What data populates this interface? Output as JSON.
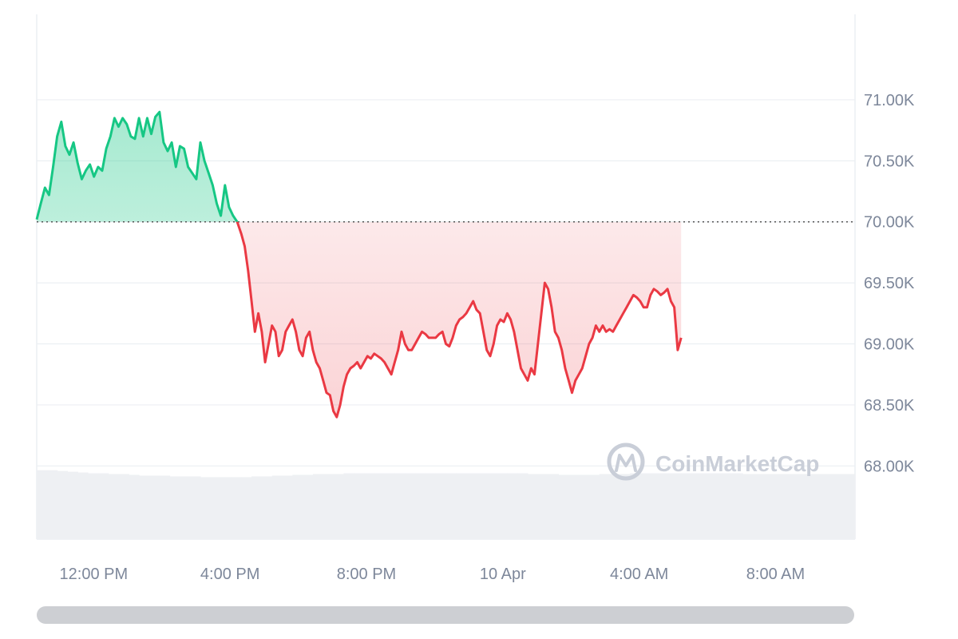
{
  "watermark": {
    "text": "CoinMarketCap",
    "icon": "coinmarketcap-logo-icon"
  },
  "colors": {
    "up": "#16c784",
    "down": "#ea3943",
    "grid": "#eceff3",
    "volume": "#eef0f3",
    "axis_text": "#7d879a",
    "scrollbar": "#cdcfd3"
  },
  "chart_data": {
    "type": "area",
    "baseline": 70000,
    "baseline_style": "dotted",
    "ylim": [
      67400,
      71700
    ],
    "y_ticks": [
      {
        "value": 71000,
        "label": "71.00K"
      },
      {
        "value": 70500,
        "label": "70.50K"
      },
      {
        "value": 70000,
        "label": "70.00K"
      },
      {
        "value": 69500,
        "label": "69.50K"
      },
      {
        "value": 69000,
        "label": "69.00K"
      },
      {
        "value": 68500,
        "label": "68.50K"
      },
      {
        "value": 68000,
        "label": "68.00K"
      }
    ],
    "x_domain_hours": [
      0,
      24
    ],
    "x_ticks": [
      {
        "hour": 1.67,
        "label": "12:00 PM"
      },
      {
        "hour": 5.67,
        "label": "4:00 PM"
      },
      {
        "hour": 9.67,
        "label": "8:00 PM"
      },
      {
        "hour": 13.67,
        "label": "10 Apr"
      },
      {
        "hour": 17.67,
        "label": "4:00 AM"
      },
      {
        "hour": 21.67,
        "label": "8:00 AM"
      }
    ],
    "series": [
      {
        "points": [
          [
            0.0,
            70020
          ],
          [
            0.12,
            70150
          ],
          [
            0.24,
            70280
          ],
          [
            0.36,
            70220
          ],
          [
            0.48,
            70450
          ],
          [
            0.6,
            70700
          ],
          [
            0.72,
            70820
          ],
          [
            0.84,
            70620
          ],
          [
            0.96,
            70550
          ],
          [
            1.08,
            70650
          ],
          [
            1.2,
            70480
          ],
          [
            1.32,
            70350
          ],
          [
            1.44,
            70420
          ],
          [
            1.56,
            70470
          ],
          [
            1.68,
            70370
          ],
          [
            1.8,
            70450
          ],
          [
            1.92,
            70420
          ],
          [
            2.04,
            70600
          ],
          [
            2.16,
            70700
          ],
          [
            2.28,
            70850
          ],
          [
            2.4,
            70780
          ],
          [
            2.52,
            70850
          ],
          [
            2.64,
            70800
          ],
          [
            2.76,
            70700
          ],
          [
            2.88,
            70680
          ],
          [
            3.0,
            70850
          ],
          [
            3.12,
            70700
          ],
          [
            3.24,
            70850
          ],
          [
            3.36,
            70720
          ],
          [
            3.48,
            70860
          ],
          [
            3.6,
            70900
          ],
          [
            3.72,
            70650
          ],
          [
            3.84,
            70580
          ],
          [
            3.96,
            70650
          ],
          [
            4.08,
            70450
          ],
          [
            4.2,
            70620
          ],
          [
            4.32,
            70600
          ],
          [
            4.44,
            70450
          ],
          [
            4.56,
            70400
          ],
          [
            4.68,
            70350
          ],
          [
            4.8,
            70650
          ],
          [
            4.92,
            70500
          ],
          [
            5.04,
            70400
          ],
          [
            5.16,
            70300
          ],
          [
            5.28,
            70150
          ],
          [
            5.4,
            70050
          ],
          [
            5.52,
            70300
          ],
          [
            5.64,
            70120
          ],
          [
            5.76,
            70050
          ],
          [
            5.88,
            70000
          ],
          [
            6.0,
            69900
          ],
          [
            6.1,
            69800
          ],
          [
            6.2,
            69600
          ],
          [
            6.3,
            69350
          ],
          [
            6.4,
            69100
          ],
          [
            6.5,
            69250
          ],
          [
            6.6,
            69100
          ],
          [
            6.7,
            68850
          ],
          [
            6.8,
            69000
          ],
          [
            6.9,
            69150
          ],
          [
            7.0,
            69100
          ],
          [
            7.1,
            68900
          ],
          [
            7.2,
            68950
          ],
          [
            7.3,
            69100
          ],
          [
            7.4,
            69150
          ],
          [
            7.5,
            69200
          ],
          [
            7.6,
            69100
          ],
          [
            7.7,
            68950
          ],
          [
            7.8,
            68900
          ],
          [
            7.9,
            69050
          ],
          [
            8.0,
            69100
          ],
          [
            8.1,
            68950
          ],
          [
            8.2,
            68850
          ],
          [
            8.3,
            68800
          ],
          [
            8.4,
            68700
          ],
          [
            8.5,
            68600
          ],
          [
            8.6,
            68580
          ],
          [
            8.7,
            68450
          ],
          [
            8.8,
            68400
          ],
          [
            8.9,
            68500
          ],
          [
            9.0,
            68650
          ],
          [
            9.1,
            68750
          ],
          [
            9.2,
            68800
          ],
          [
            9.3,
            68820
          ],
          [
            9.4,
            68850
          ],
          [
            9.5,
            68800
          ],
          [
            9.6,
            68850
          ],
          [
            9.7,
            68900
          ],
          [
            9.8,
            68880
          ],
          [
            9.9,
            68920
          ],
          [
            10.0,
            68900
          ],
          [
            10.1,
            68880
          ],
          [
            10.2,
            68850
          ],
          [
            10.3,
            68800
          ],
          [
            10.4,
            68750
          ],
          [
            10.5,
            68850
          ],
          [
            10.6,
            68950
          ],
          [
            10.7,
            69100
          ],
          [
            10.8,
            69000
          ],
          [
            10.9,
            68950
          ],
          [
            11.0,
            68950
          ],
          [
            11.1,
            69000
          ],
          [
            11.2,
            69050
          ],
          [
            11.3,
            69100
          ],
          [
            11.4,
            69080
          ],
          [
            11.5,
            69050
          ],
          [
            11.6,
            69050
          ],
          [
            11.7,
            69050
          ],
          [
            11.8,
            69080
          ],
          [
            11.9,
            69100
          ],
          [
            12.0,
            69000
          ],
          [
            12.1,
            68980
          ],
          [
            12.2,
            69050
          ],
          [
            12.3,
            69150
          ],
          [
            12.4,
            69200
          ],
          [
            12.5,
            69220
          ],
          [
            12.6,
            69250
          ],
          [
            12.7,
            69300
          ],
          [
            12.8,
            69350
          ],
          [
            12.9,
            69280
          ],
          [
            13.0,
            69250
          ],
          [
            13.1,
            69100
          ],
          [
            13.2,
            68950
          ],
          [
            13.3,
            68900
          ],
          [
            13.4,
            69000
          ],
          [
            13.5,
            69150
          ],
          [
            13.6,
            69200
          ],
          [
            13.7,
            69180
          ],
          [
            13.8,
            69250
          ],
          [
            13.9,
            69200
          ],
          [
            14.0,
            69100
          ],
          [
            14.1,
            68950
          ],
          [
            14.2,
            68800
          ],
          [
            14.3,
            68750
          ],
          [
            14.4,
            68700
          ],
          [
            14.5,
            68800
          ],
          [
            14.6,
            68750
          ],
          [
            14.7,
            69000
          ],
          [
            14.8,
            69250
          ],
          [
            14.9,
            69500
          ],
          [
            15.0,
            69450
          ],
          [
            15.1,
            69300
          ],
          [
            15.2,
            69100
          ],
          [
            15.3,
            69050
          ],
          [
            15.4,
            68950
          ],
          [
            15.5,
            68800
          ],
          [
            15.6,
            68700
          ],
          [
            15.7,
            68600
          ],
          [
            15.8,
            68700
          ],
          [
            15.9,
            68750
          ],
          [
            16.0,
            68800
          ],
          [
            16.1,
            68900
          ],
          [
            16.2,
            69000
          ],
          [
            16.3,
            69050
          ],
          [
            16.4,
            69150
          ],
          [
            16.5,
            69100
          ],
          [
            16.6,
            69150
          ],
          [
            16.7,
            69100
          ],
          [
            16.8,
            69120
          ],
          [
            16.9,
            69100
          ],
          [
            17.0,
            69150
          ],
          [
            17.1,
            69200
          ],
          [
            17.2,
            69250
          ],
          [
            17.3,
            69300
          ],
          [
            17.4,
            69350
          ],
          [
            17.5,
            69400
          ],
          [
            17.6,
            69380
          ],
          [
            17.7,
            69350
          ],
          [
            17.8,
            69300
          ],
          [
            17.9,
            69300
          ],
          [
            18.0,
            69400
          ],
          [
            18.1,
            69450
          ],
          [
            18.2,
            69430
          ],
          [
            18.3,
            69400
          ],
          [
            18.4,
            69420
          ],
          [
            18.5,
            69450
          ],
          [
            18.6,
            69350
          ],
          [
            18.7,
            69300
          ],
          [
            18.8,
            68950
          ],
          [
            18.9,
            69050
          ]
        ]
      }
    ],
    "volume": [
      0.89,
      0.89,
      0.88,
      0.87,
      0.86,
      0.85,
      0.85,
      0.84,
      0.84,
      0.83,
      0.82,
      0.82,
      0.82,
      0.81,
      0.81,
      0.81,
      0.8,
      0.8,
      0.8,
      0.8,
      0.8,
      0.81,
      0.81,
      0.82,
      0.82,
      0.83,
      0.83,
      0.84,
      0.84,
      0.84,
      0.85,
      0.85,
      0.85,
      0.85,
      0.85,
      0.85,
      0.85,
      0.85,
      0.85,
      0.85,
      0.85,
      0.85,
      0.85,
      0.85,
      0.85,
      0.85,
      0.85,
      0.85,
      0.84,
      0.84,
      0.84,
      0.83,
      0.83,
      0.83,
      0.83,
      0.84,
      0.84,
      0.84,
      0.85,
      0.85,
      0.85,
      0.85,
      0.85,
      0.85,
      0.85,
      0.85,
      0.85,
      0.85,
      0.85,
      0.84,
      0.84,
      0.84,
      0.84,
      0.84,
      0.84,
      0.84,
      0.84,
      0.84,
      0.84,
      0.84
    ]
  }
}
